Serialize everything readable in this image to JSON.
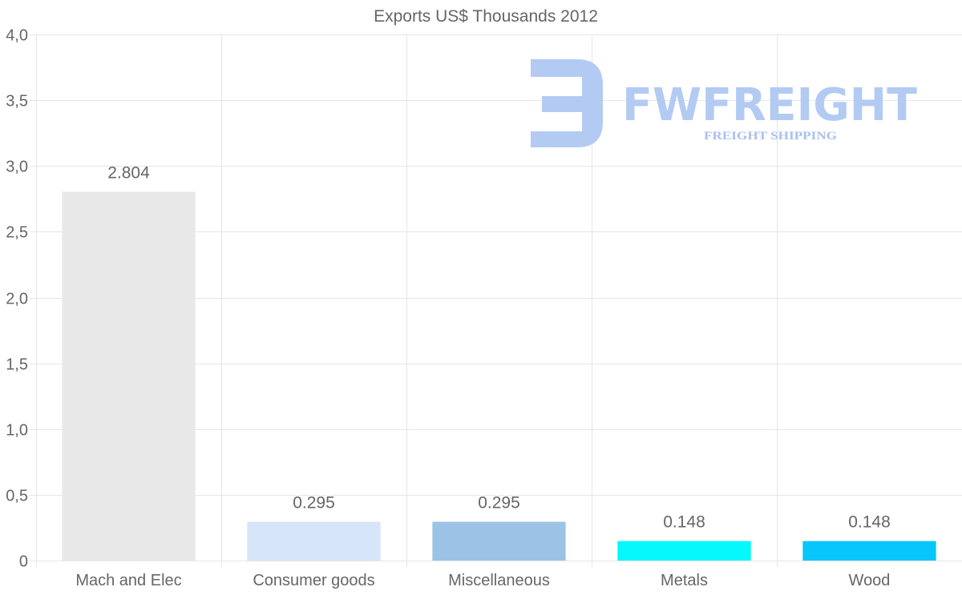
{
  "chart_data": {
    "type": "bar",
    "title": "Exports US$ Thousands 2012",
    "xlabel": "",
    "ylabel": "",
    "ylim": [
      0,
      4
    ],
    "yticks": [
      {
        "value": 0,
        "label": "0"
      },
      {
        "value": 0.5,
        "label": "0,5"
      },
      {
        "value": 1.0,
        "label": "1,0"
      },
      {
        "value": 1.5,
        "label": "1,5"
      },
      {
        "value": 2.0,
        "label": "2,0"
      },
      {
        "value": 2.5,
        "label": "2,5"
      },
      {
        "value": 3.0,
        "label": "3,0"
      },
      {
        "value": 3.5,
        "label": "3,5"
      },
      {
        "value": 4.0,
        "label": "4,0"
      }
    ],
    "categories": [
      "Mach and Elec",
      "Consumer goods",
      "Miscellaneous",
      "Metals",
      "Wood"
    ],
    "values": [
      2.804,
      0.295,
      0.295,
      0.148,
      0.148
    ],
    "value_labels": [
      "2.804",
      "0.295",
      "0.295",
      "0.148",
      "0.148"
    ],
    "colors": [
      "#e8e8e8",
      "#d6e6f8",
      "#9cc3e6",
      "#06f8fb",
      "#06c6fb"
    ],
    "grid": true,
    "legend": "none"
  },
  "watermark": {
    "brand": "FWFREIGHT",
    "tagline": "FREIGHT SHIPPING",
    "color": "#b3cbf3",
    "subcolor": "#a9c0ee"
  }
}
